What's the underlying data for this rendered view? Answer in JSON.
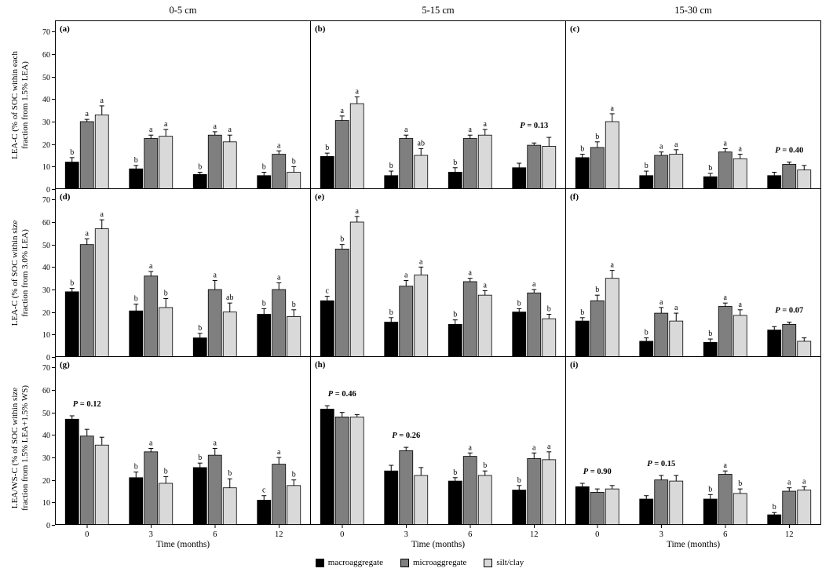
{
  "figure": {
    "column_titles": [
      "0-5 cm",
      "5-15 cm",
      "15-30 cm"
    ],
    "x_axis_label": "Time (months)",
    "row_labels": [
      [
        "LEA-C (% of SOC within each",
        "fraction from 1.5% LEA)"
      ],
      [
        "LEA-C (% of SOC within size",
        "fraction from 3.0% LEA)"
      ],
      [
        "LEA/WS-C (% of SOC within size",
        "fraction from 1.5% LEA+1.5% WS)"
      ]
    ],
    "y_ticks": [
      0,
      10,
      20,
      30,
      40,
      50,
      60,
      70
    ],
    "y_max": 75,
    "legend": [
      {
        "label": "macroaggregate",
        "color": "#000000"
      },
      {
        "label": "microaggregate",
        "color": "#7f7f7f"
      },
      {
        "label": "silt/clay",
        "color": "#d9d9d9"
      }
    ]
  },
  "chart_data": {
    "type": "bar",
    "categories": [
      "0",
      "3",
      "6",
      "12"
    ],
    "series_names": [
      "macroaggregate",
      "microaggregate",
      "silt/clay"
    ],
    "series_colors": [
      "#000000",
      "#7f7f7f",
      "#d9d9d9"
    ],
    "xlabel": "Time (months)",
    "ylim": [
      0,
      75
    ],
    "panels": [
      {
        "id": "a",
        "label": "(a)",
        "row": 0,
        "col": 0,
        "depth": "0-5 cm",
        "series": [
          [
            12,
            9,
            6.5,
            6
          ],
          [
            30,
            22.5,
            24,
            15.5
          ],
          [
            33,
            23.5,
            21,
            7.5
          ]
        ],
        "errors": [
          [
            2,
            1.5,
            1,
            1.5
          ],
          [
            1,
            1.5,
            1.5,
            1.5
          ],
          [
            4,
            3,
            3,
            2.5
          ]
        ],
        "letters": [
          [
            "b",
            "a",
            "a"
          ],
          [
            "b",
            "a",
            "a"
          ],
          [
            "b",
            "a",
            "a"
          ],
          [
            "b",
            "a",
            "b"
          ]
        ],
        "p_annotations": []
      },
      {
        "id": "b",
        "label": "(b)",
        "row": 0,
        "col": 1,
        "depth": "5-15 cm",
        "series": [
          [
            14.5,
            6,
            7.5,
            9.5
          ],
          [
            30.5,
            22.5,
            22.5,
            19.5
          ],
          [
            38,
            15,
            24,
            19
          ]
        ],
        "errors": [
          [
            1.5,
            2,
            2,
            2
          ],
          [
            2,
            1.5,
            1.5,
            1
          ],
          [
            3,
            3,
            2.5,
            4
          ]
        ],
        "letters": [
          [
            "b",
            "a",
            "a"
          ],
          [
            "b",
            "a",
            "ab"
          ],
          [
            "b",
            "a",
            "a"
          ],
          [
            "",
            "",
            ""
          ]
        ],
        "p_annotations": [
          {
            "group": 3,
            "text": "P = 0.13"
          }
        ]
      },
      {
        "id": "c",
        "label": "(c)",
        "row": 0,
        "col": 2,
        "depth": "15-30 cm",
        "series": [
          [
            14,
            6,
            5.5,
            6
          ],
          [
            18.5,
            15,
            16.5,
            11
          ],
          [
            30,
            15.5,
            13.5,
            8.5
          ]
        ],
        "errors": [
          [
            1.5,
            2,
            1.5,
            1.5
          ],
          [
            2.5,
            1.5,
            1.5,
            1
          ],
          [
            3.5,
            2,
            2,
            2
          ]
        ],
        "letters": [
          [
            "b",
            "b",
            "a"
          ],
          [
            "b",
            "a",
            "a"
          ],
          [
            "b",
            "a",
            "a"
          ],
          [
            "",
            "",
            ""
          ]
        ],
        "p_annotations": [
          {
            "group": 3,
            "text": "P = 0.40"
          }
        ]
      },
      {
        "id": "d",
        "label": "(d)",
        "row": 1,
        "col": 0,
        "depth": "0-5 cm",
        "series": [
          [
            29,
            20.5,
            8.5,
            19
          ],
          [
            50,
            36,
            30,
            30
          ],
          [
            57,
            22,
            20,
            18
          ]
        ],
        "errors": [
          [
            1.5,
            3,
            2,
            2.5
          ],
          [
            2.5,
            2,
            4,
            3
          ],
          [
            4,
            4,
            4,
            3
          ]
        ],
        "letters": [
          [
            "b",
            "a",
            "a"
          ],
          [
            "b",
            "a",
            "b"
          ],
          [
            "b",
            "a",
            "ab"
          ],
          [
            "b",
            "a",
            "b"
          ]
        ],
        "p_annotations": []
      },
      {
        "id": "e",
        "label": "(e)",
        "row": 1,
        "col": 1,
        "depth": "5-15 cm",
        "series": [
          [
            25,
            15.5,
            14.5,
            20
          ],
          [
            48,
            31.5,
            33.5,
            28.5
          ],
          [
            60,
            36.5,
            27.5,
            17
          ]
        ],
        "errors": [
          [
            2,
            2,
            2,
            1.5
          ],
          [
            2,
            2.5,
            1.5,
            1.5
          ],
          [
            2.5,
            3.5,
            2,
            2
          ]
        ],
        "letters": [
          [
            "c",
            "b",
            "a"
          ],
          [
            "b",
            "a",
            "a"
          ],
          [
            "b",
            "a",
            "a"
          ],
          [
            "b",
            "a",
            "b"
          ]
        ],
        "p_annotations": []
      },
      {
        "id": "f",
        "label": "(f)",
        "row": 1,
        "col": 2,
        "depth": "15-30 cm",
        "series": [
          [
            16,
            7,
            6.5,
            12
          ],
          [
            25,
            19.5,
            22.5,
            14.5
          ],
          [
            35,
            16,
            18.5,
            7
          ]
        ],
        "errors": [
          [
            1.5,
            1.5,
            1.5,
            1.5
          ],
          [
            2.5,
            2.5,
            1.5,
            1
          ],
          [
            3.5,
            3.5,
            2.5,
            1.5
          ]
        ],
        "letters": [
          [
            "b",
            "b",
            "a"
          ],
          [
            "b",
            "a",
            "a"
          ],
          [
            "b",
            "a",
            "a"
          ],
          [
            "",
            "",
            ""
          ]
        ],
        "p_annotations": [
          {
            "group": 3,
            "text": "P = 0.07"
          }
        ]
      },
      {
        "id": "g",
        "label": "(g)",
        "row": 2,
        "col": 0,
        "depth": "0-5 cm",
        "series": [
          [
            47,
            21,
            25.5,
            11
          ],
          [
            39.5,
            32.5,
            31,
            27
          ],
          [
            35.5,
            18.5,
            16.5,
            17.5
          ]
        ],
        "errors": [
          [
            1.5,
            2.5,
            2,
            2
          ],
          [
            3,
            1.5,
            3,
            3
          ],
          [
            3.5,
            3,
            4,
            2.5
          ]
        ],
        "letters": [
          [
            "",
            "",
            ""
          ],
          [
            "b",
            "a",
            "b"
          ],
          [
            "b",
            "a",
            "b"
          ],
          [
            "c",
            "a",
            "b"
          ]
        ],
        "p_annotations": [
          {
            "group": 0,
            "text": "P = 0.12"
          }
        ]
      },
      {
        "id": "h",
        "label": "(h)",
        "row": 2,
        "col": 1,
        "depth": "5-15 cm",
        "series": [
          [
            51.5,
            24,
            19.5,
            15.5
          ],
          [
            48,
            33,
            30.5,
            29.5
          ],
          [
            48,
            22,
            22,
            29
          ]
        ],
        "errors": [
          [
            1.5,
            2.5,
            1.5,
            2
          ],
          [
            2,
            1.5,
            1.5,
            2.5
          ],
          [
            1,
            3.5,
            2,
            3.5
          ]
        ],
        "letters": [
          [
            "",
            "",
            ""
          ],
          [
            "",
            "",
            ""
          ],
          [
            "b",
            "a",
            "b"
          ],
          [
            "b",
            "a",
            "a"
          ]
        ],
        "p_annotations": [
          {
            "group": 0,
            "text": "P = 0.46"
          },
          {
            "group": 1,
            "text": "P = 0.26"
          }
        ]
      },
      {
        "id": "i",
        "label": "(i)",
        "row": 2,
        "col": 2,
        "depth": "15-30 cm",
        "series": [
          [
            17,
            11.5,
            11.5,
            4.5
          ],
          [
            14.5,
            20,
            22.5,
            15
          ],
          [
            16,
            19.5,
            14,
            15.5
          ]
        ],
        "errors": [
          [
            1.5,
            1.5,
            2,
            1
          ],
          [
            1.5,
            2,
            1.5,
            1.5
          ],
          [
            1.5,
            2.5,
            2,
            1.5
          ]
        ],
        "letters": [
          [
            "",
            "",
            ""
          ],
          [
            "",
            "",
            ""
          ],
          [
            "b",
            "a",
            "b"
          ],
          [
            "b",
            "a",
            "a"
          ]
        ],
        "p_annotations": [
          {
            "group": 0,
            "text": "P = 0.90"
          },
          {
            "group": 1,
            "text": "P = 0.15"
          }
        ]
      }
    ]
  }
}
